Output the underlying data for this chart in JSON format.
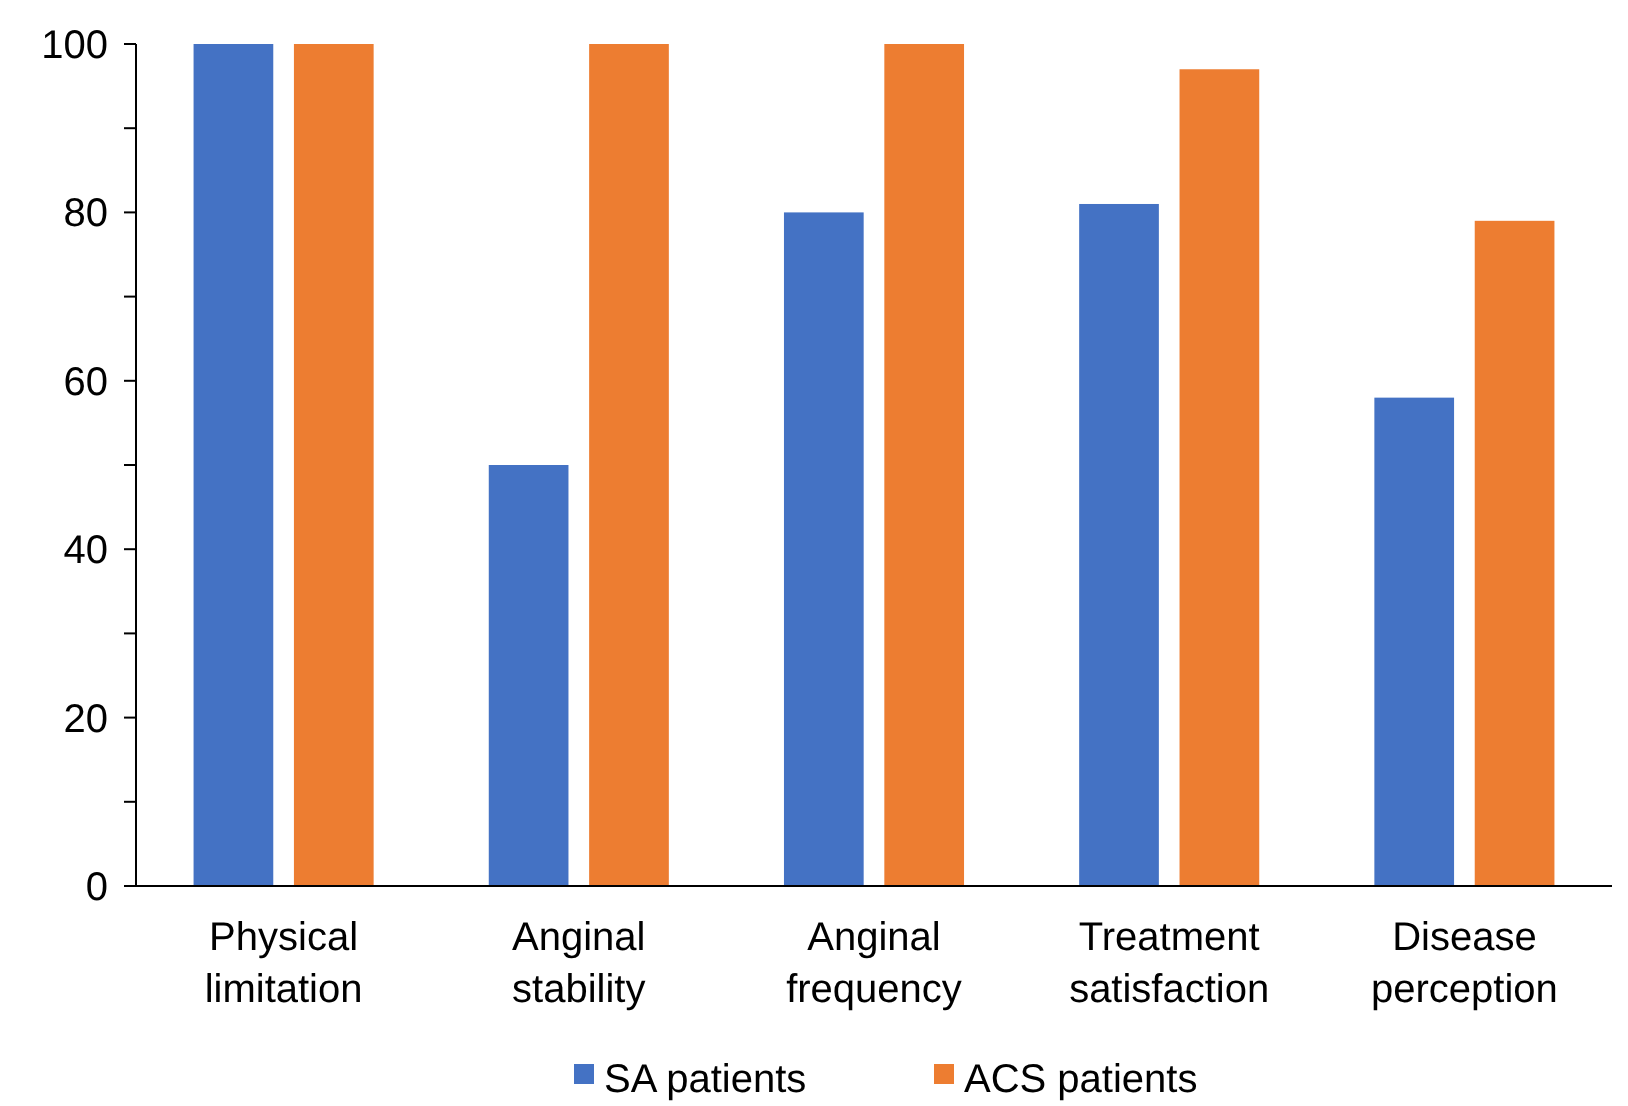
{
  "chart_data": {
    "type": "bar",
    "categories": [
      "Physical limitation",
      "Anginal stability",
      "Anginal frequency",
      "Treatment satisfaction",
      "Disease perception"
    ],
    "series": [
      {
        "name": "SA patients",
        "color": "#4472c4",
        "values": [
          100,
          50,
          80,
          81,
          58
        ]
      },
      {
        "name": "ACS patients",
        "color": "#ed7d31",
        "values": [
          100,
          100,
          100,
          97,
          79
        ]
      }
    ],
    "ylim": [
      0,
      100
    ],
    "yticks": [
      0,
      {
        "value": 10,
        "label": null
      },
      20,
      {
        "value": 30,
        "label": null
      },
      40,
      {
        "value": 50,
        "label": null
      },
      60,
      {
        "value": 70,
        "label": null
      },
      80,
      {
        "value": 90,
        "label": null
      },
      100
    ],
    "grid": false,
    "legend": "bottom"
  }
}
